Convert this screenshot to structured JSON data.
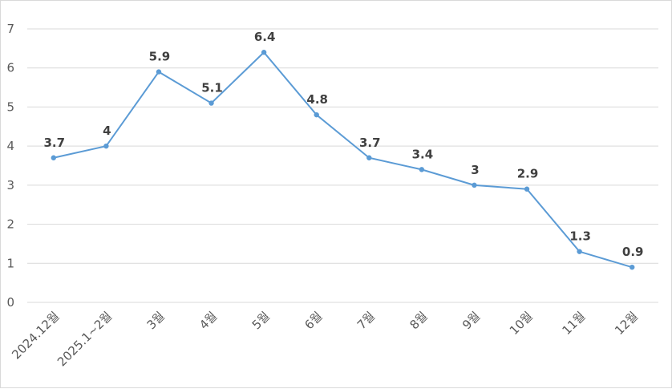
{
  "chart_data": {
    "type": "line",
    "title": "",
    "xlabel": "",
    "ylabel": "",
    "categories": [
      "2024.12월",
      "2025.1~2월",
      "3월",
      "4월",
      "5월",
      "6월",
      "7월",
      "8월",
      "9월",
      "10월",
      "11월",
      "12월"
    ],
    "series": [
      {
        "values": [
          3.7,
          4,
          5.9,
          5.1,
          6.4,
          4.8,
          3.7,
          3.4,
          3,
          2.9,
          1.3,
          0.9
        ],
        "color": "#5b9bd5"
      }
    ],
    "data_labels": [
      "3.7",
      "4",
      "5.9",
      "5.1",
      "6.4",
      "4.8",
      "3.7",
      "3.4",
      "3",
      "2.9",
      "1.3",
      "0.9"
    ],
    "ylim": [
      0,
      7
    ],
    "yticks": [
      0,
      1,
      2,
      3,
      4,
      5,
      6,
      7
    ],
    "grid": true,
    "legend": "none",
    "x_tick_rotation": "-45deg"
  }
}
